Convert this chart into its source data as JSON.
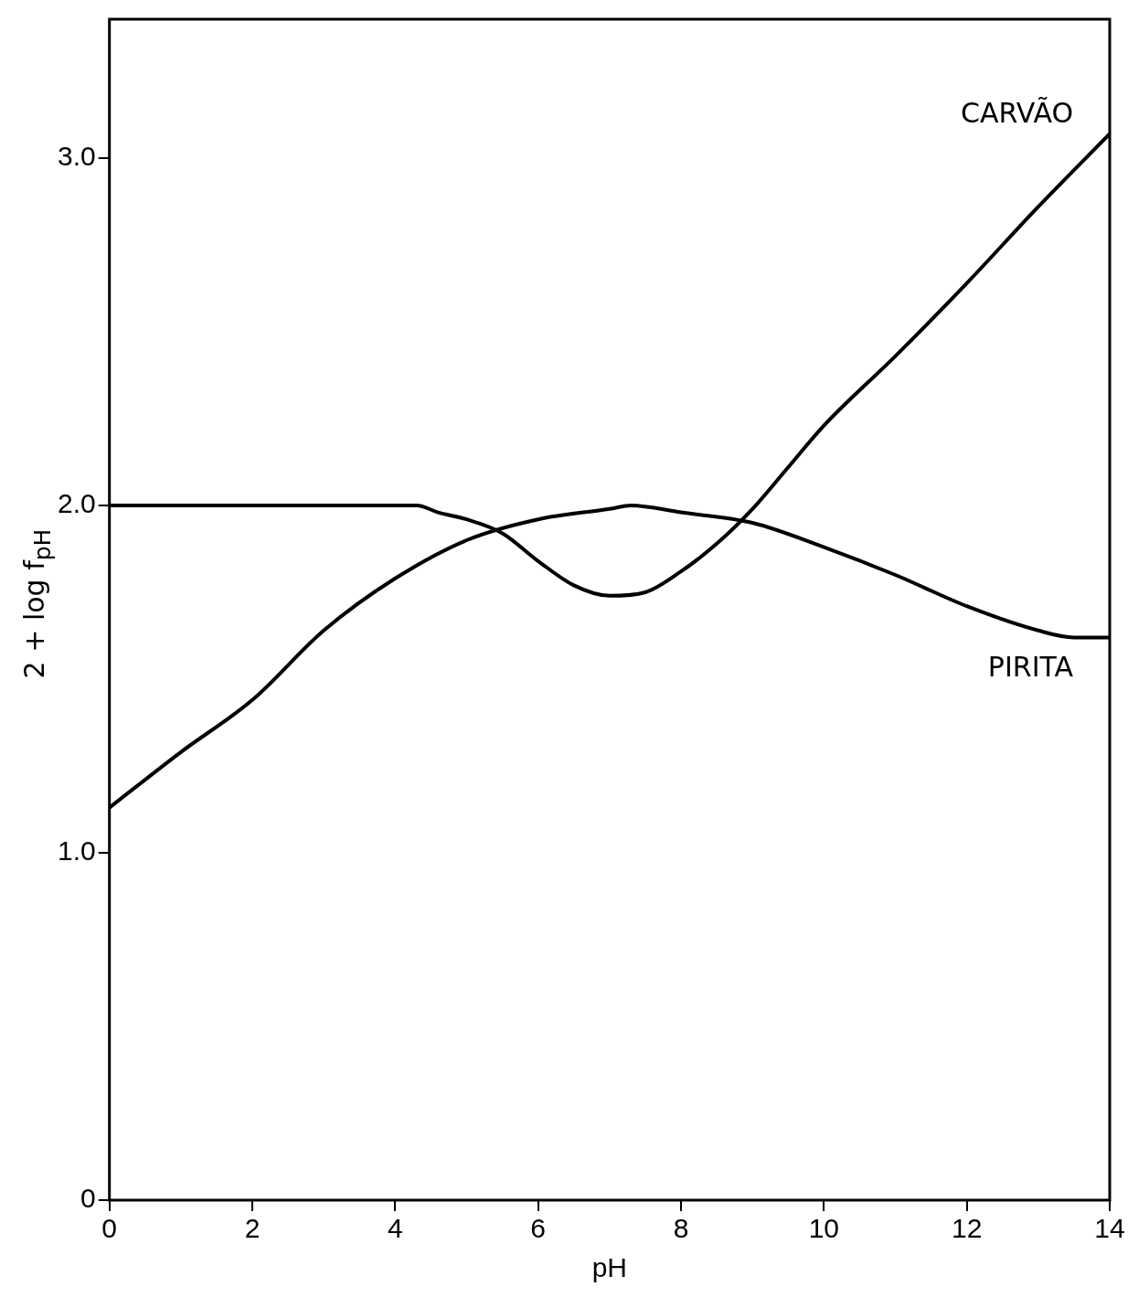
{
  "chart_data": {
    "type": "line",
    "xlabel": "pH",
    "ylabel": "2 + log f$_{pH}$",
    "xlim": [
      0,
      14
    ],
    "xticks": [
      0,
      2,
      4,
      6,
      8,
      10,
      12,
      14
    ],
    "ylim": [
      0,
      3.4
    ],
    "yticks": [
      {
        "value": 0,
        "label": "0"
      },
      {
        "value": 1,
        "label": "1.0"
      },
      {
        "value": 2,
        "label": "2.0"
      },
      {
        "value": 3,
        "label": "3.0"
      }
    ],
    "grid": false,
    "legend": false,
    "marker": "none",
    "line_style": "solid",
    "series": [
      {
        "name": "CARVÃO",
        "color": "#000000",
        "x": [
          0,
          1,
          2,
          3,
          4,
          4.3,
          4.6,
          5,
          5.5,
          6,
          6.5,
          7,
          7.5,
          8,
          8.5,
          9,
          9.5,
          10,
          11,
          12,
          13,
          14
        ],
        "values": [
          2.0,
          2.0,
          2.0,
          2.0,
          2.0,
          2.0,
          1.98,
          1.96,
          1.92,
          1.84,
          1.77,
          1.74,
          1.75,
          1.81,
          1.89,
          1.99,
          2.11,
          2.23,
          2.43,
          2.64,
          2.86,
          3.07
        ]
      },
      {
        "name": "PIRITA",
        "color": "#000000",
        "x": [
          0,
          1,
          2,
          3,
          4,
          5,
          6,
          7,
          7.3,
          8,
          9,
          10,
          11,
          12,
          13,
          13.5,
          14
        ],
        "values": [
          1.13,
          1.29,
          1.44,
          1.64,
          1.79,
          1.9,
          1.96,
          1.99,
          2.0,
          1.98,
          1.95,
          1.88,
          1.8,
          1.71,
          1.64,
          1.62,
          1.62
        ]
      }
    ]
  }
}
